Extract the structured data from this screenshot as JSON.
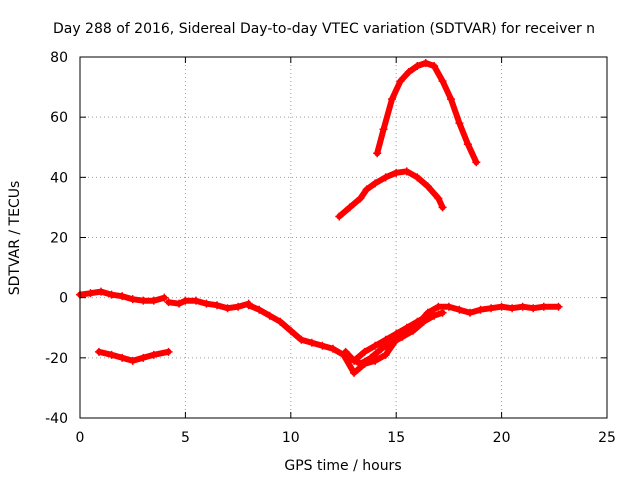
{
  "chart_data": {
    "type": "line",
    "title": "Day 288 of 2016, Sidereal Day-to-day VTEC variation (SDTVAR) for receiver n",
    "xlabel": "GPS time / hours",
    "ylabel": "SDTVAR / TECUs",
    "xlim": [
      0,
      25
    ],
    "ylim": [
      -40,
      80
    ],
    "xticks": [
      0,
      5,
      10,
      15,
      20,
      25
    ],
    "yticks": [
      -40,
      -20,
      0,
      20,
      40,
      60,
      80
    ],
    "grid": true,
    "color": "#ff0000",
    "series": [
      {
        "name": "baseline-track-1",
        "points": [
          [
            0,
            1
          ],
          [
            0.5,
            1.5
          ],
          [
            1,
            2
          ],
          [
            1.5,
            1
          ],
          [
            2,
            0.5
          ],
          [
            2.5,
            -0.5
          ],
          [
            3,
            -1
          ],
          [
            3.5,
            -1
          ],
          [
            4,
            0
          ]
        ]
      },
      {
        "name": "baseline-track-2",
        "points": [
          [
            4.2,
            -1.5
          ],
          [
            4.7,
            -2
          ],
          [
            5,
            -1
          ],
          [
            5.5,
            -1
          ],
          [
            6,
            -2
          ],
          [
            6.5,
            -2.5
          ],
          [
            7,
            -3.5
          ],
          [
            7.5,
            -3
          ],
          [
            8,
            -2
          ]
        ]
      },
      {
        "name": "decline-track",
        "points": [
          [
            8,
            -2.5
          ],
          [
            8.5,
            -4
          ],
          [
            9,
            -6
          ],
          [
            9.5,
            -8
          ],
          [
            10,
            -11
          ],
          [
            10.5,
            -14
          ],
          [
            11,
            -15
          ],
          [
            11.5,
            -16
          ],
          [
            12,
            -17
          ],
          [
            12.5,
            -19
          ],
          [
            13,
            -25
          ],
          [
            13.5,
            -22
          ],
          [
            14,
            -21
          ],
          [
            14.5,
            -19
          ],
          [
            15,
            -14
          ],
          [
            15.5,
            -11
          ],
          [
            16,
            -9
          ],
          [
            16.5,
            -5
          ],
          [
            17,
            -3
          ],
          [
            17.5,
            -3
          ],
          [
            18,
            -4
          ],
          [
            18.5,
            -5
          ],
          [
            19,
            -4
          ],
          [
            19.5,
            -3.5
          ],
          [
            20,
            -3
          ],
          [
            20.5,
            -3.5
          ],
          [
            21,
            -3
          ],
          [
            21.5,
            -3.5
          ],
          [
            22,
            -3
          ],
          [
            22.7,
            -3
          ]
        ]
      },
      {
        "name": "decline-track-2",
        "points": [
          [
            12.8,
            -20
          ],
          [
            13.3,
            -22
          ],
          [
            13.8,
            -20
          ],
          [
            14.3,
            -17
          ],
          [
            14.8,
            -15
          ],
          [
            15.3,
            -13
          ],
          [
            15.8,
            -11
          ],
          [
            16.3,
            -8
          ],
          [
            16.8,
            -6
          ],
          [
            17.2,
            -5
          ]
        ]
      },
      {
        "name": "decline-track-3",
        "points": [
          [
            12.6,
            -18
          ],
          [
            13,
            -21
          ],
          [
            13.5,
            -18
          ],
          [
            14,
            -16
          ],
          [
            14.5,
            -14
          ],
          [
            15,
            -12
          ],
          [
            15.5,
            -10
          ],
          [
            16,
            -8
          ],
          [
            16.5,
            -6
          ]
        ]
      },
      {
        "name": "negative-arc",
        "points": [
          [
            0.9,
            -18
          ],
          [
            1.5,
            -19
          ],
          [
            2,
            -20
          ],
          [
            2.5,
            -21
          ],
          [
            3,
            -20
          ],
          [
            3.5,
            -19
          ],
          [
            4.2,
            -18
          ]
        ]
      },
      {
        "name": "high-arc",
        "points": [
          [
            14.1,
            48
          ],
          [
            14.4,
            56
          ],
          [
            14.8,
            66
          ],
          [
            15.2,
            72
          ],
          [
            15.6,
            75
          ],
          [
            16,
            77
          ],
          [
            16.4,
            78
          ],
          [
            16.8,
            77
          ],
          [
            17.2,
            72
          ],
          [
            17.6,
            66
          ],
          [
            18,
            58
          ],
          [
            18.4,
            51
          ],
          [
            18.8,
            45
          ]
        ]
      },
      {
        "name": "mid-arc",
        "points": [
          [
            12.3,
            27
          ],
          [
            12.8,
            30
          ],
          [
            13.3,
            33
          ],
          [
            13.6,
            36
          ],
          [
            14,
            38
          ],
          [
            14.5,
            40
          ],
          [
            15,
            41.5
          ],
          [
            15.5,
            42
          ],
          [
            16,
            40
          ],
          [
            16.5,
            37
          ],
          [
            17,
            33
          ],
          [
            17.2,
            30
          ]
        ]
      }
    ]
  }
}
